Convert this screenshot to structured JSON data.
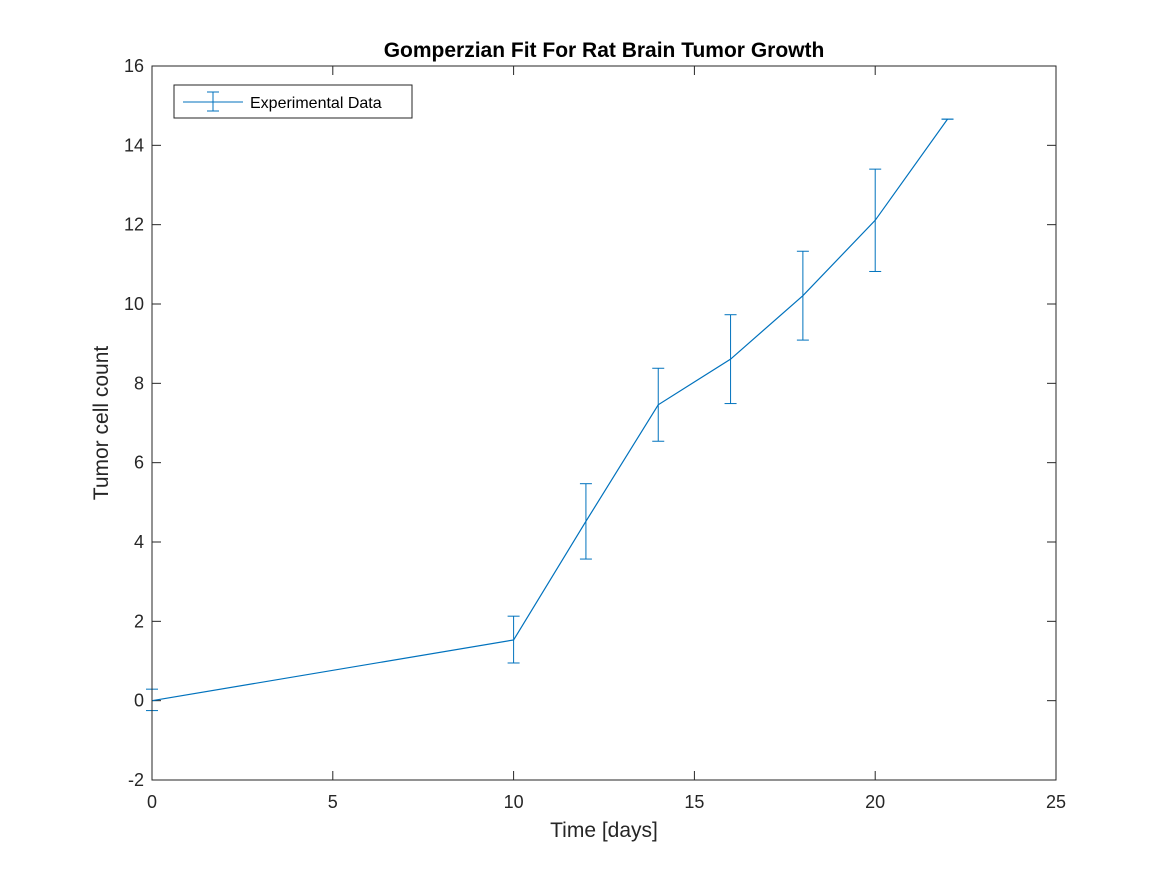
{
  "chart_data": {
    "type": "line",
    "title": "Gomperzian Fit For Rat Brain Tumor Growth",
    "xlabel": "Time [days]",
    "ylabel": "Tumor cell count",
    "xlim": [
      0,
      25
    ],
    "ylim": [
      -2,
      16
    ],
    "xticks": [
      0,
      5,
      10,
      15,
      20,
      25
    ],
    "yticks": [
      -2,
      0,
      2,
      4,
      6,
      8,
      10,
      12,
      14,
      16
    ],
    "xtick_labels": [
      "0",
      "5",
      "10",
      "15",
      "20",
      "25"
    ],
    "ytick_labels": [
      "-2",
      "0",
      "2",
      "4",
      "6",
      "8",
      "10",
      "12",
      "14",
      "16"
    ],
    "grid": false,
    "legend_position": "top-left",
    "series": [
      {
        "name": "Experimental Data",
        "color": "#0072BD",
        "x": [
          0,
          10,
          12,
          14,
          16,
          18,
          20,
          22
        ],
        "y": [
          0.0,
          1.53,
          4.52,
          7.46,
          8.61,
          10.21,
          12.11,
          14.66
        ],
        "err_low": [
          0.25,
          0.58,
          0.95,
          0.92,
          1.12,
          1.12,
          1.29,
          0.0
        ],
        "err_high": [
          0.29,
          0.6,
          0.95,
          0.92,
          1.12,
          1.12,
          1.29,
          0.0
        ]
      }
    ]
  }
}
